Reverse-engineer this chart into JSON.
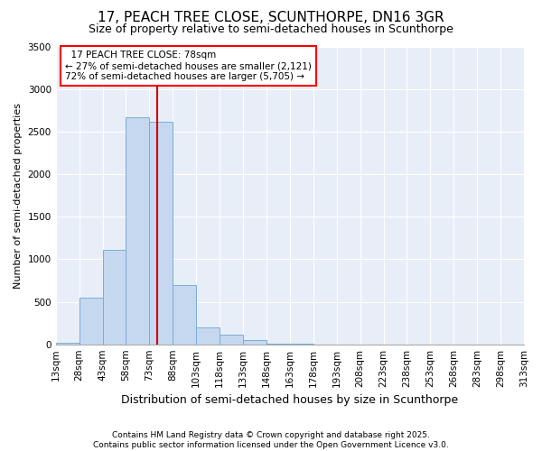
{
  "title": "17, PEACH TREE CLOSE, SCUNTHORPE, DN16 3GR",
  "subtitle": "Size of property relative to semi-detached houses in Scunthorpe",
  "xlabel": "Distribution of semi-detached houses by size in Scunthorpe",
  "ylabel": "Number of semi-detached properties",
  "footer_line1": "Contains HM Land Registry data © Crown copyright and database right 2025.",
  "footer_line2": "Contains public sector information licensed under the Open Government Licence v3.0.",
  "annotation_line1": "17 PEACH TREE CLOSE: 78sqm",
  "annotation_line2": "← 27% of semi-detached houses are smaller (2,121)",
  "annotation_line3": "72% of semi-detached houses are larger (5,705) →",
  "property_size": 78,
  "bin_edges": [
    13,
    28,
    43,
    58,
    73,
    88,
    103,
    118,
    133,
    148,
    163,
    178,
    193,
    208,
    223,
    238,
    253,
    268,
    283,
    298,
    313
  ],
  "bin_counts": [
    20,
    550,
    1110,
    2670,
    2610,
    700,
    200,
    110,
    50,
    5,
    2,
    0,
    0,
    0,
    0,
    0,
    0,
    0,
    0,
    0
  ],
  "bar_color": "#c5d8f0",
  "bar_edge_color": "#7aadd4",
  "vline_color": "#cc0000",
  "plot_bg_color": "#e8eef8",
  "fig_bg_color": "#ffffff",
  "grid_color": "#ffffff",
  "ylim": [
    0,
    3500
  ],
  "yticks": [
    0,
    500,
    1000,
    1500,
    2000,
    2500,
    3000,
    3500
  ],
  "title_fontsize": 11,
  "subtitle_fontsize": 9,
  "xlabel_fontsize": 9,
  "ylabel_fontsize": 8,
  "tick_fontsize": 7.5,
  "annotation_fontsize": 7.5,
  "footer_fontsize": 6.5
}
